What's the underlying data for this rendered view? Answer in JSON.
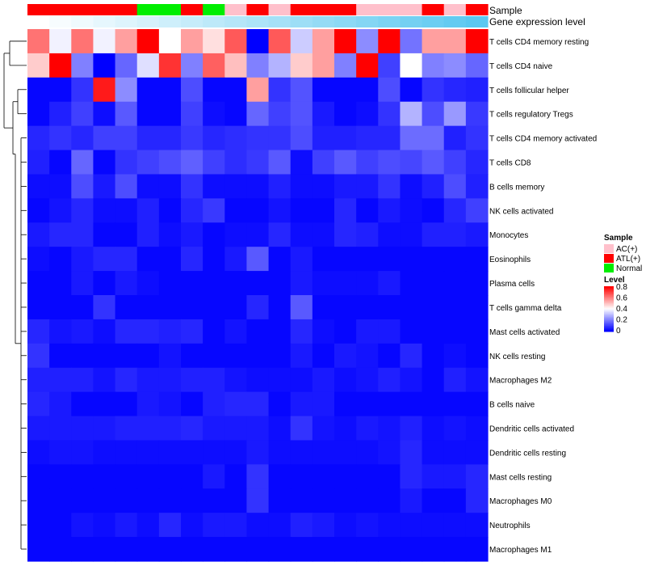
{
  "chart_data": {
    "type": "heatmap",
    "columns": 21,
    "rows": [
      "T cells CD4 memory resting",
      "T cells CD4 naive",
      "T cells follicular helper",
      "T cells regulatory  Tregs",
      "T cells CD4 memory activated",
      "T cells CD8",
      "B cells memory",
      "NK cells activated",
      "Monocytes",
      "Eosinophils",
      "Plasma cells",
      "T cells gamma delta",
      "Mast cells activated",
      "NK cells resting",
      "Macrophages M2",
      "B cells naive",
      "Dendritic cells activated",
      "Dendritic cells resting",
      "Mast cells resting",
      "Macrophages M0",
      "Neutrophils",
      "Macrophages M1"
    ],
    "values": [
      [
        0.62,
        0.38,
        0.62,
        0.38,
        0.55,
        0.8,
        0.4,
        0.55,
        0.45,
        0.66,
        0.0,
        0.66,
        0.32,
        0.55,
        0.8,
        0.22,
        0.8,
        0.18,
        0.55,
        0.55,
        0.8
      ],
      [
        0.48,
        0.8,
        0.2,
        0.0,
        0.16,
        0.35,
        0.72,
        0.2,
        0.65,
        0.5,
        0.2,
        0.28,
        0.48,
        0.55,
        0.2,
        0.8,
        0.1,
        0.4,
        0.2,
        0.22,
        0.16
      ],
      [
        0.01,
        0.01,
        0.08,
        0.76,
        0.22,
        0.01,
        0.01,
        0.12,
        0.01,
        0.01,
        0.55,
        0.08,
        0.13,
        0.01,
        0.01,
        0.01,
        0.12,
        0.01,
        0.08,
        0.06,
        0.05
      ],
      [
        0.01,
        0.05,
        0.1,
        0.02,
        0.14,
        0.01,
        0.01,
        0.1,
        0.02,
        0.01,
        0.16,
        0.1,
        0.13,
        0.04,
        0.01,
        0.02,
        0.08,
        0.28,
        0.12,
        0.24,
        0.09
      ],
      [
        0.06,
        0.08,
        0.06,
        0.1,
        0.1,
        0.06,
        0.06,
        0.09,
        0.06,
        0.07,
        0.08,
        0.08,
        0.12,
        0.05,
        0.05,
        0.06,
        0.06,
        0.17,
        0.17,
        0.05,
        0.08
      ],
      [
        0.05,
        0.01,
        0.16,
        0.01,
        0.08,
        0.1,
        0.12,
        0.15,
        0.1,
        0.07,
        0.09,
        0.14,
        0.02,
        0.1,
        0.14,
        0.1,
        0.12,
        0.11,
        0.14,
        0.1,
        0.06
      ],
      [
        0.02,
        0.02,
        0.12,
        0.04,
        0.12,
        0.02,
        0.02,
        0.08,
        0.02,
        0.02,
        0.02,
        0.05,
        0.02,
        0.02,
        0.04,
        0.04,
        0.08,
        0.02,
        0.05,
        0.12,
        0.05
      ],
      [
        0.01,
        0.03,
        0.06,
        0.02,
        0.02,
        0.05,
        0.01,
        0.06,
        0.09,
        0.01,
        0.01,
        0.03,
        0.01,
        0.01,
        0.06,
        0.01,
        0.04,
        0.02,
        0.01,
        0.06,
        0.1
      ],
      [
        0.04,
        0.06,
        0.06,
        0.01,
        0.01,
        0.05,
        0.02,
        0.04,
        0.01,
        0.02,
        0.02,
        0.06,
        0.02,
        0.02,
        0.06,
        0.05,
        0.02,
        0.02,
        0.05,
        0.05,
        0.04
      ],
      [
        0.02,
        0.01,
        0.04,
        0.06,
        0.06,
        0.01,
        0.01,
        0.06,
        0.01,
        0.04,
        0.14,
        0.01,
        0.04,
        0.01,
        0.01,
        0.01,
        0.01,
        0.01,
        0.01,
        0.01,
        0.01
      ],
      [
        0.01,
        0.01,
        0.04,
        0.01,
        0.04,
        0.02,
        0.01,
        0.01,
        0.01,
        0.01,
        0.01,
        0.01,
        0.04,
        0.02,
        0.02,
        0.02,
        0.04,
        0.01,
        0.01,
        0.01,
        0.01
      ],
      [
        0.01,
        0.01,
        0.01,
        0.08,
        0.01,
        0.01,
        0.01,
        0.01,
        0.01,
        0.01,
        0.06,
        0.01,
        0.14,
        0.01,
        0.01,
        0.01,
        0.01,
        0.01,
        0.01,
        0.01,
        0.01
      ],
      [
        0.06,
        0.03,
        0.04,
        0.02,
        0.06,
        0.06,
        0.05,
        0.06,
        0.01,
        0.03,
        0.01,
        0.01,
        0.06,
        0.02,
        0.01,
        0.04,
        0.04,
        0.01,
        0.01,
        0.01,
        0.01
      ],
      [
        0.08,
        0.01,
        0.01,
        0.01,
        0.01,
        0.01,
        0.03,
        0.01,
        0.01,
        0.01,
        0.01,
        0.01,
        0.04,
        0.01,
        0.04,
        0.03,
        0.01,
        0.06,
        0.01,
        0.02,
        0.01
      ],
      [
        0.05,
        0.05,
        0.05,
        0.03,
        0.06,
        0.04,
        0.04,
        0.05,
        0.05,
        0.03,
        0.02,
        0.02,
        0.02,
        0.04,
        0.02,
        0.03,
        0.05,
        0.03,
        0.01,
        0.05,
        0.03
      ],
      [
        0.06,
        0.04,
        0.01,
        0.01,
        0.01,
        0.04,
        0.03,
        0.01,
        0.05,
        0.06,
        0.06,
        0.01,
        0.04,
        0.04,
        0.01,
        0.01,
        0.01,
        0.01,
        0.01,
        0.01,
        0.01
      ],
      [
        0.04,
        0.04,
        0.04,
        0.04,
        0.05,
        0.05,
        0.05,
        0.06,
        0.04,
        0.04,
        0.04,
        0.02,
        0.08,
        0.03,
        0.02,
        0.04,
        0.03,
        0.05,
        0.02,
        0.03,
        0.02
      ],
      [
        0.02,
        0.03,
        0.03,
        0.02,
        0.02,
        0.02,
        0.02,
        0.02,
        0.02,
        0.02,
        0.04,
        0.02,
        0.02,
        0.02,
        0.02,
        0.02,
        0.03,
        0.06,
        0.02,
        0.02,
        0.02
      ],
      [
        0.01,
        0.01,
        0.01,
        0.01,
        0.01,
        0.01,
        0.01,
        0.01,
        0.04,
        0.01,
        0.08,
        0.01,
        0.01,
        0.01,
        0.01,
        0.01,
        0.01,
        0.06,
        0.04,
        0.04,
        0.06
      ],
      [
        0.01,
        0.01,
        0.01,
        0.01,
        0.01,
        0.01,
        0.01,
        0.01,
        0.01,
        0.01,
        0.08,
        0.01,
        0.01,
        0.01,
        0.01,
        0.01,
        0.01,
        0.04,
        0.01,
        0.01,
        0.06
      ],
      [
        0.01,
        0.01,
        0.03,
        0.02,
        0.04,
        0.02,
        0.06,
        0.02,
        0.04,
        0.04,
        0.02,
        0.02,
        0.05,
        0.04,
        0.02,
        0.03,
        0.02,
        0.02,
        0.02,
        0.02,
        0.02
      ],
      [
        0.01,
        0.01,
        0.01,
        0.01,
        0.01,
        0.01,
        0.01,
        0.01,
        0.01,
        0.01,
        0.01,
        0.01,
        0.01,
        0.01,
        0.01,
        0.01,
        0.01,
        0.01,
        0.01,
        0.01,
        0.01
      ]
    ],
    "sample_groups": [
      "ATL(+)",
      "ATL(+)",
      "ATL(+)",
      "ATL(+)",
      "ATL(+)",
      "Normal",
      "Normal",
      "ATL(+)",
      "Normal",
      "AC(+)",
      "ATL(+)",
      "AC(+)",
      "ATL(+)",
      "ATL(+)",
      "ATL(+)",
      "AC(+)",
      "AC(+)",
      "AC(+)",
      "ATL(+)",
      "AC(+)",
      "ATL(+)"
    ],
    "expression_level": [
      0.0,
      0.05,
      0.1,
      0.15,
      0.2,
      0.25,
      0.3,
      0.35,
      0.4,
      0.45,
      0.5,
      0.55,
      0.6,
      0.65,
      0.7,
      0.75,
      0.8,
      0.85,
      0.9,
      0.95,
      1.0
    ],
    "annotation_labels": {
      "sample": "Sample",
      "expression": "Gene expression level"
    },
    "legend_sample": {
      "title": "Sample",
      "entries": [
        {
          "label": "AC(+)",
          "color": "#ffc0cb"
        },
        {
          "label": "ATL(+)",
          "color": "#ff0000"
        },
        {
          "label": "Normal",
          "color": "#00ee00"
        }
      ]
    },
    "legend_level": {
      "title": "Level",
      "ticks": [
        "0.8",
        "0.6",
        "0.4",
        "0.2",
        "0"
      ],
      "range": [
        0,
        0.8
      ]
    },
    "colors": {
      "low": "#0000ff",
      "mid": "#ffffff",
      "high": "#ff0000",
      "expr_low": "#ffffff",
      "expr_high": "#5bc8f0"
    }
  }
}
